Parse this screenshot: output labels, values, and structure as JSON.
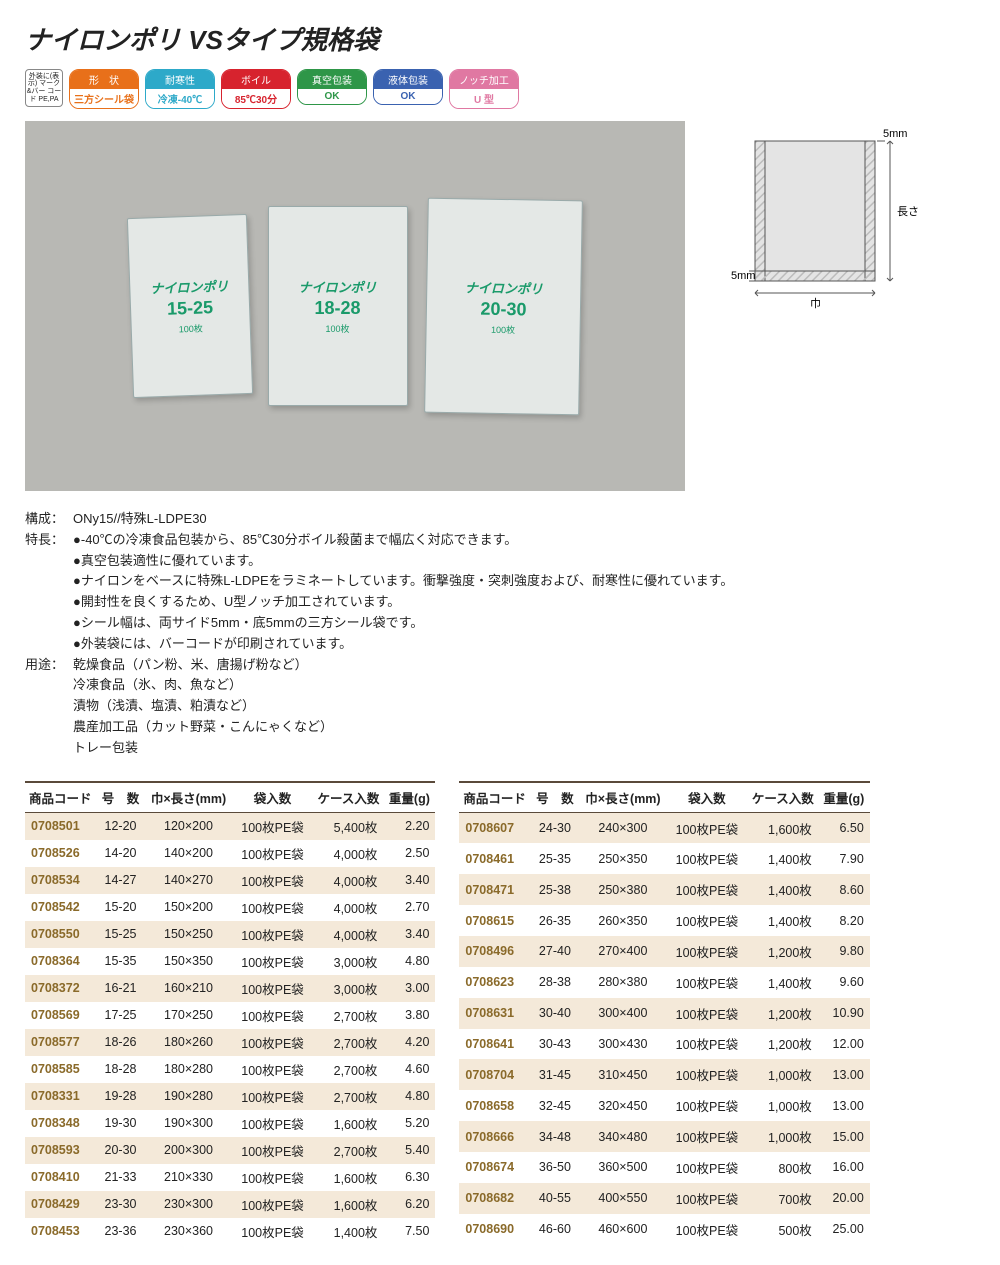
{
  "title": "ナイロンポリ VSタイプ規格袋",
  "recycle": "外装に(表示)\nマーク&バー\nコード\nPE,PA",
  "badges": [
    {
      "cls": "b-orange",
      "top": "形　状",
      "bot": "三方シール袋"
    },
    {
      "cls": "b-cyan",
      "top": "耐寒性",
      "bot": "冷凍-40℃"
    },
    {
      "cls": "b-red",
      "top": "ボイル",
      "bot": "85℃30分"
    },
    {
      "cls": "b-green",
      "top": "真空包装",
      "bot": "OK"
    },
    {
      "cls": "b-blue",
      "top": "液体包装",
      "bot": "OK"
    },
    {
      "cls": "b-pink",
      "top": "ノッチ加工",
      "bot": "U 型"
    }
  ],
  "packages": [
    {
      "cls": "pkg1",
      "name": "ナイロンポリ",
      "size": "15-25",
      "qty": "100枚"
    },
    {
      "cls": "pkg2",
      "name": "ナイロンポリ",
      "size": "18-28",
      "qty": "100枚"
    },
    {
      "cls": "pkg3",
      "name": "ナイロンポリ",
      "size": "20-30",
      "qty": "100枚"
    }
  ],
  "diagram": {
    "top_label": "5mm",
    "bottom_left_label": "5mm",
    "right_label": "長さ",
    "bottom_label": "巾",
    "fill": "#e4e4e4",
    "hatch": "#bcbcbc",
    "stroke": "#555"
  },
  "desc": {
    "composition_label": "構成：",
    "composition": "ONy15//特殊L-LDPE30",
    "features_label": "特長：",
    "features": [
      "-40℃の冷凍食品包装から、85℃30分ボイル殺菌まで幅広く対応できます。",
      "真空包装適性に優れています。",
      "ナイロンをベースに特殊L-LDPEをラミネートしています。衝撃強度・突刺強度および、耐寒性に優れています。",
      "開封性を良くするため、U型ノッチ加工されています。",
      "シール幅は、両サイド5mm・底5mmの三方シール袋です。",
      "外装袋には、バーコードが印刷されています。"
    ],
    "uses_label": "用途：",
    "uses": [
      "乾燥食品（パン粉、米、唐揚げ粉など）",
      "冷凍食品（氷、肉、魚など）",
      "漬物（浅漬、塩漬、粕漬など）",
      "農産加工品（カット野菜・こんにゃくなど）",
      "トレー包装"
    ]
  },
  "columns": [
    "商品コード",
    "号　数",
    "巾×長さ(mm)",
    "袋入数",
    "ケース入数",
    "重量(g)"
  ],
  "left": [
    [
      "0708501",
      "12-20",
      "120×200",
      "100枚PE袋",
      "5,400枚",
      "2.20"
    ],
    [
      "0708526",
      "14-20",
      "140×200",
      "100枚PE袋",
      "4,000枚",
      "2.50"
    ],
    [
      "0708534",
      "14-27",
      "140×270",
      "100枚PE袋",
      "4,000枚",
      "3.40"
    ],
    [
      "0708542",
      "15-20",
      "150×200",
      "100枚PE袋",
      "4,000枚",
      "2.70"
    ],
    [
      "0708550",
      "15-25",
      "150×250",
      "100枚PE袋",
      "4,000枚",
      "3.40"
    ],
    [
      "0708364",
      "15-35",
      "150×350",
      "100枚PE袋",
      "3,000枚",
      "4.80"
    ],
    [
      "0708372",
      "16-21",
      "160×210",
      "100枚PE袋",
      "3,000枚",
      "3.00"
    ],
    [
      "0708569",
      "17-25",
      "170×250",
      "100枚PE袋",
      "2,700枚",
      "3.80"
    ],
    [
      "0708577",
      "18-26",
      "180×260",
      "100枚PE袋",
      "2,700枚",
      "4.20"
    ],
    [
      "0708585",
      "18-28",
      "180×280",
      "100枚PE袋",
      "2,700枚",
      "4.60"
    ],
    [
      "0708331",
      "19-28",
      "190×280",
      "100枚PE袋",
      "2,700枚",
      "4.80"
    ],
    [
      "0708348",
      "19-30",
      "190×300",
      "100枚PE袋",
      "1,600枚",
      "5.20"
    ],
    [
      "0708593",
      "20-30",
      "200×300",
      "100枚PE袋",
      "2,700枚",
      "5.40"
    ],
    [
      "0708410",
      "21-33",
      "210×330",
      "100枚PE袋",
      "1,600枚",
      "6.30"
    ],
    [
      "0708429",
      "23-30",
      "230×300",
      "100枚PE袋",
      "1,600枚",
      "6.20"
    ],
    [
      "0708453",
      "23-36",
      "230×360",
      "100枚PE袋",
      "1,400枚",
      "7.50"
    ]
  ],
  "right": [
    [
      "0708607",
      "24-30",
      "240×300",
      "100枚PE袋",
      "1,600枚",
      "6.50"
    ],
    [
      "0708461",
      "25-35",
      "250×350",
      "100枚PE袋",
      "1,400枚",
      "7.90"
    ],
    [
      "0708471",
      "25-38",
      "250×380",
      "100枚PE袋",
      "1,400枚",
      "8.60"
    ],
    [
      "0708615",
      "26-35",
      "260×350",
      "100枚PE袋",
      "1,400枚",
      "8.20"
    ],
    [
      "0708496",
      "27-40",
      "270×400",
      "100枚PE袋",
      "1,200枚",
      "9.80"
    ],
    [
      "0708623",
      "28-38",
      "280×380",
      "100枚PE袋",
      "1,400枚",
      "9.60"
    ],
    [
      "0708631",
      "30-40",
      "300×400",
      "100枚PE袋",
      "1,200枚",
      "10.90"
    ],
    [
      "0708641",
      "30-43",
      "300×430",
      "100枚PE袋",
      "1,200枚",
      "12.00"
    ],
    [
      "0708704",
      "31-45",
      "310×450",
      "100枚PE袋",
      "1,000枚",
      "13.00"
    ],
    [
      "0708658",
      "32-45",
      "320×450",
      "100枚PE袋",
      "1,000枚",
      "13.00"
    ],
    [
      "0708666",
      "34-48",
      "340×480",
      "100枚PE袋",
      "1,000枚",
      "15.00"
    ],
    [
      "0708674",
      "36-50",
      "360×500",
      "100枚PE袋",
      "800枚",
      "16.00"
    ],
    [
      "0708682",
      "40-55",
      "400×550",
      "100枚PE袋",
      "700枚",
      "20.00"
    ],
    [
      "0708690",
      "46-60",
      "460×600",
      "100枚PE袋",
      "500枚",
      "25.00"
    ]
  ]
}
